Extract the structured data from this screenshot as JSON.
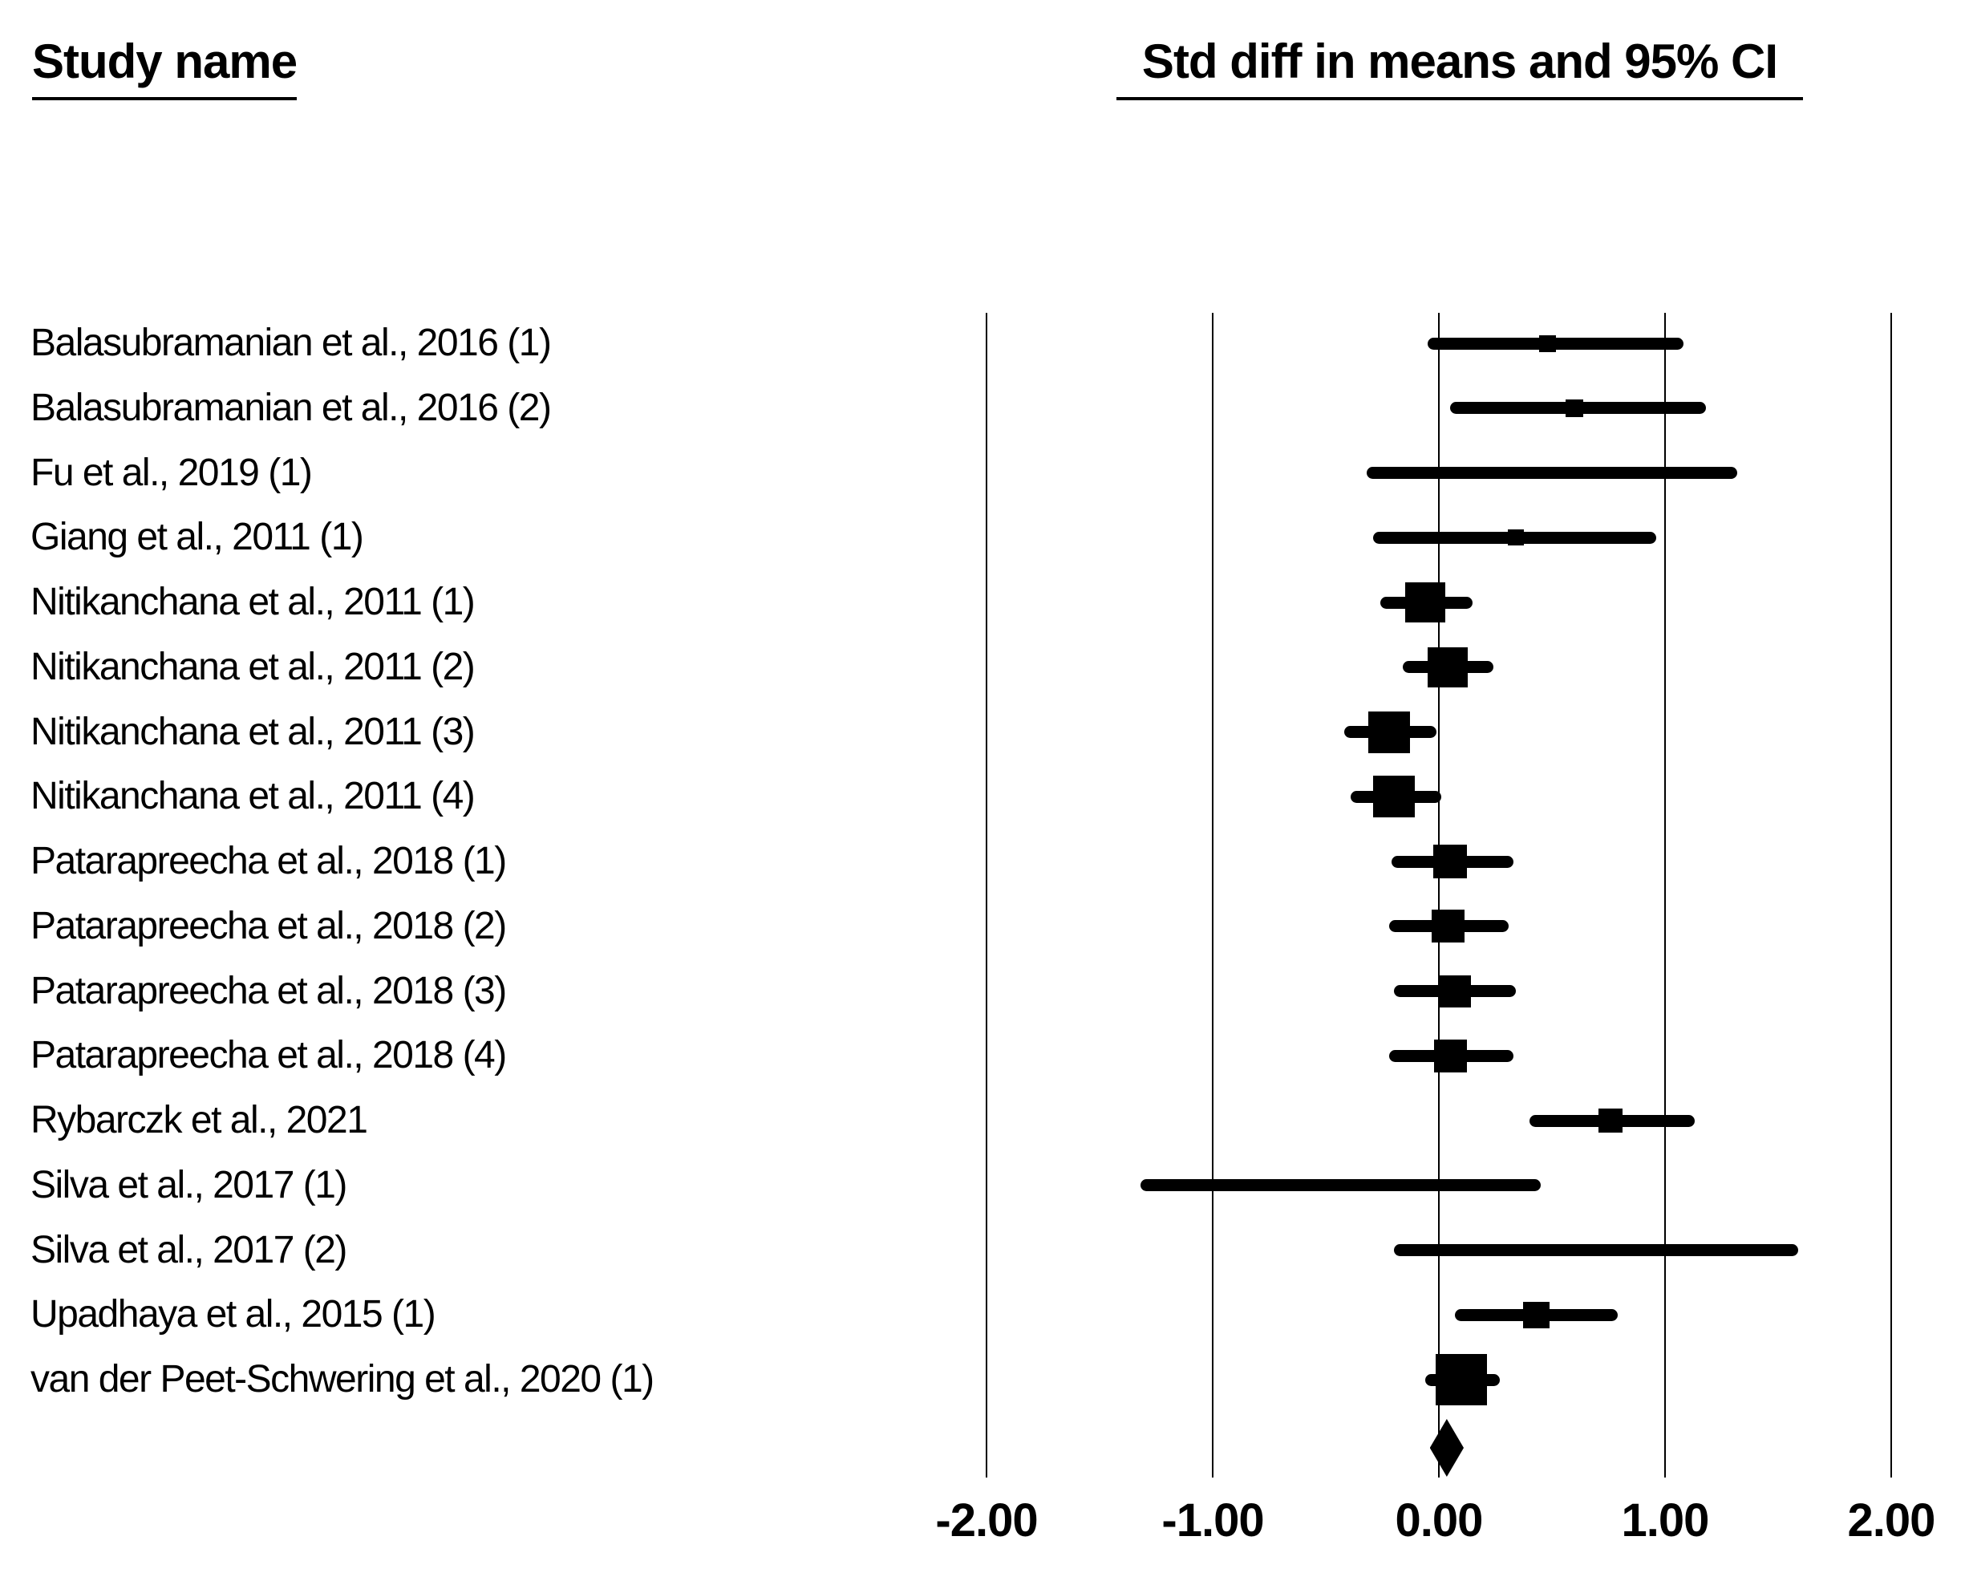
{
  "headers": {
    "study_column": "Study name",
    "effect_column": "Std diff in means and 95% CI"
  },
  "colors": {
    "foreground": "#000000",
    "background": "#ffffff"
  },
  "chart_data": {
    "type": "scatter",
    "subtype": "forest-plot",
    "title": "Std diff in means and 95% CI",
    "xlabel": "Std diff in means",
    "ylabel": "Study name",
    "xlim": [
      -2.2,
      2.3
    ],
    "grid": "vertical-gridlines-on",
    "x_ticks": {
      "values": [
        -2,
        -1,
        0,
        1,
        2
      ],
      "labels": [
        "-2.00",
        "-1.00",
        "0.00",
        "1.00",
        "2.00"
      ]
    },
    "studies": [
      {
        "name": "Balasubramanian et al., 2016 (1)",
        "mean": 0.48,
        "ci_low": -0.05,
        "ci_high": 1.08,
        "marker_size": 21
      },
      {
        "name": "Balasubramanian et al., 2016 (2)",
        "mean": 0.6,
        "ci_low": 0.05,
        "ci_high": 1.18,
        "marker_size": 22
      },
      {
        "name": "Fu et al., 2019 (1)",
        "mean": 0.5,
        "ci_low": -0.32,
        "ci_high": 1.32,
        "marker_size": 14
      },
      {
        "name": "Giang et al., 2011 (1)",
        "mean": 0.34,
        "ci_low": -0.29,
        "ci_high": 0.96,
        "marker_size": 20
      },
      {
        "name": "Nitikanchana et al., 2011 (1)",
        "mean": -0.06,
        "ci_low": -0.26,
        "ci_high": 0.15,
        "marker_size": 50
      },
      {
        "name": "Nitikanchana et al., 2011 (2)",
        "mean": 0.04,
        "ci_low": -0.16,
        "ci_high": 0.24,
        "marker_size": 50
      },
      {
        "name": "Nitikanchana et al., 2011 (3)",
        "mean": -0.22,
        "ci_low": -0.42,
        "ci_high": -0.01,
        "marker_size": 52
      },
      {
        "name": "Nitikanchana et al., 2011 (4)",
        "mean": -0.2,
        "ci_low": -0.39,
        "ci_high": 0.01,
        "marker_size": 52
      },
      {
        "name": "Patarapreecha et al., 2018 (1)",
        "mean": 0.05,
        "ci_low": -0.21,
        "ci_high": 0.33,
        "marker_size": 42
      },
      {
        "name": "Patarapreecha et al., 2018 (2)",
        "mean": 0.04,
        "ci_low": -0.22,
        "ci_high": 0.31,
        "marker_size": 41
      },
      {
        "name": "Patarapreecha et al., 2018 (3)",
        "mean": 0.07,
        "ci_low": -0.2,
        "ci_high": 0.34,
        "marker_size": 40
      },
      {
        "name": "Patarapreecha et al., 2018 (4)",
        "mean": 0.05,
        "ci_low": -0.22,
        "ci_high": 0.33,
        "marker_size": 41
      },
      {
        "name": "Rybarczk et al., 2021",
        "mean": 0.76,
        "ci_low": 0.4,
        "ci_high": 1.13,
        "marker_size": 30
      },
      {
        "name": "Silva et al., 2017 (1)",
        "mean": -0.44,
        "ci_low": -1.32,
        "ci_high": 0.45,
        "marker_size": 15
      },
      {
        "name": "Silva et al., 2017 (2)",
        "mean": 0.68,
        "ci_low": -0.2,
        "ci_high": 1.59,
        "marker_size": 13
      },
      {
        "name": "Upadhaya et al., 2015 (1)",
        "mean": 0.43,
        "ci_low": 0.07,
        "ci_high": 0.79,
        "marker_size": 33
      },
      {
        "name": "van der Peet-Schwering et al., 2020 (1)",
        "mean": 0.1,
        "ci_low": -0.06,
        "ci_high": 0.27,
        "marker_size": 64
      }
    ],
    "overall": {
      "mean": 0.04,
      "ci_low": -0.04,
      "ci_high": 0.11
    },
    "legend": "none"
  }
}
